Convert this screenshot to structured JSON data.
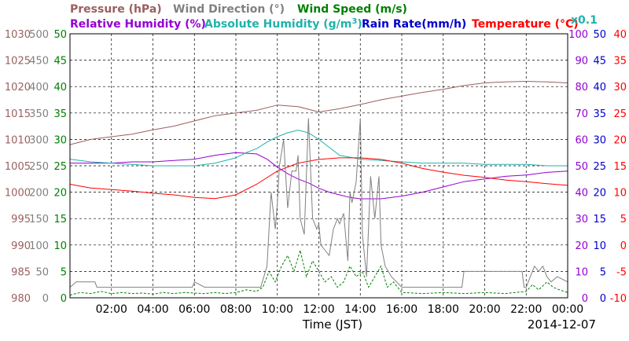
{
  "chart_data": {
    "type": "line",
    "legend": [
      {
        "id": "pressure",
        "label": "Pressure (hPa)",
        "color": "#9b5f5f"
      },
      {
        "id": "wind_dir",
        "label": "Wind Direction (°)",
        "color": "#808080"
      },
      {
        "id": "wind_speed",
        "label": "Wind Speed (m/s)",
        "color": "#008000"
      },
      {
        "id": "rel_hum",
        "label": "Relative Humidity (%)",
        "color": "#9400d3"
      },
      {
        "id": "abs_hum",
        "label": "Absolute Humidity (g/m",
        "superscript": "3",
        "suffix": ")",
        "color": "#20b2aa"
      },
      {
        "id": "rain_rate",
        "label": "Rain Rate(mm/h)",
        "color": "#0000cd"
      },
      {
        "id": "temperature",
        "label": "Temperature (°C)",
        "color": "#ff0000"
      },
      {
        "id": "abs_hum_scale",
        "label": "x0.1",
        "color": "#20b2aa"
      }
    ],
    "xlabel": "Time (JST)",
    "date_label": "2014-12-07",
    "x_range_hours": [
      0,
      24
    ],
    "x_ticks": [
      "02:00",
      "04:00",
      "06:00",
      "08:00",
      "10:00",
      "12:00",
      "14:00",
      "16:00",
      "18:00",
      "20:00",
      "22:00",
      "00:00"
    ],
    "axes": {
      "pressure": {
        "min": 980,
        "max": 1030,
        "ticks": [
          "1030",
          "1025",
          "1020",
          "1015",
          "1010",
          "1005",
          "1000",
          "995",
          "990",
          "985",
          "980"
        ],
        "color": "#9b5f5f"
      },
      "wind_dir": {
        "min": 0,
        "max": 500,
        "ticks": [
          "500",
          "450",
          "400",
          "350",
          "300",
          "250",
          "200",
          "150",
          "100",
          "50",
          "0"
        ],
        "color": "#808080"
      },
      "wind_speed": {
        "min": 0,
        "max": 50,
        "ticks": [
          "50",
          "45",
          "40",
          "35",
          "30",
          "25",
          "20",
          "15",
          "10",
          "5",
          "0"
        ],
        "color": "#008000"
      },
      "rel_hum": {
        "min": 0,
        "max": 100,
        "ticks": [
          "100",
          "90",
          "80",
          "70",
          "60",
          "50",
          "40",
          "30",
          "20",
          "10",
          "0"
        ],
        "color": "#9400d3"
      },
      "rain_rate": {
        "min": 0,
        "max": 50,
        "ticks": [
          "50",
          "45",
          "40",
          "35",
          "30",
          "25",
          "20",
          "15",
          "10",
          "5",
          "0"
        ],
        "color": "#0000cd"
      },
      "temperature": {
        "min": -10,
        "max": 40,
        "ticks": [
          "40",
          "35",
          "30",
          "25",
          "20",
          "15",
          "10",
          "5",
          "0",
          "-5",
          "-10"
        ],
        "color": "#ff0000"
      }
    },
    "series": [
      {
        "name": "Pressure (hPa)",
        "axis": "pressure",
        "color": "#9b5f5f",
        "x": [
          0,
          1,
          2,
          3,
          4,
          5,
          6,
          7,
          8,
          9,
          10,
          11,
          12,
          13,
          14,
          15,
          16,
          17,
          18,
          19,
          20,
          21,
          22,
          23,
          24
        ],
        "y": [
          1009,
          1010,
          1010.5,
          1011,
          1011.8,
          1012.5,
          1013.5,
          1014.5,
          1015,
          1015.5,
          1016.5,
          1016.2,
          1015.2,
          1015.8,
          1016.6,
          1017.5,
          1018.2,
          1018.9,
          1019.5,
          1020.2,
          1020.7,
          1020.9,
          1021,
          1020.9,
          1020.7
        ]
      },
      {
        "name": "Relative Humidity (%)",
        "axis": "rel_hum",
        "color": "#9400d3",
        "x": [
          0,
          1,
          2,
          3,
          4,
          5,
          6,
          7,
          8,
          9,
          9.5,
          10,
          10.5,
          11,
          11.5,
          12,
          12.5,
          13,
          13.5,
          14,
          15,
          16,
          17,
          18,
          19,
          20,
          21,
          22,
          23,
          24
        ],
        "y": [
          51,
          51,
          51,
          51.5,
          51.5,
          52,
          52.5,
          54,
          55,
          54.5,
          52.5,
          49.5,
          47,
          45,
          43.5,
          41.5,
          40,
          39,
          38,
          37.5,
          37.5,
          38.5,
          40,
          42,
          44,
          45,
          46,
          46.5,
          47.5,
          48
        ]
      },
      {
        "name": "Absolute Humidity x0.1 (g/m3)",
        "axis": "rel_hum",
        "color": "#20b2aa",
        "x": [
          0,
          1,
          2,
          3,
          4,
          5,
          6,
          7,
          8,
          8.5,
          9,
          9.5,
          10,
          10.5,
          11,
          11.5,
          12,
          12.5,
          13,
          14,
          15,
          16,
          17,
          18,
          19,
          20,
          21,
          22,
          23,
          24
        ],
        "y": [
          52.5,
          51.5,
          51,
          50.5,
          50,
          50,
          50,
          51,
          53,
          55,
          56.5,
          59,
          61,
          62.5,
          63.5,
          62.5,
          60,
          57,
          54,
          52.5,
          52,
          51.5,
          51,
          51,
          51,
          50.5,
          50.5,
          50.5,
          50,
          50
        ]
      },
      {
        "name": "Temperature (°C)",
        "axis": "temperature",
        "color": "#ff0000",
        "x": [
          0,
          1,
          2,
          3,
          4,
          5,
          6,
          7,
          8,
          9,
          10,
          11,
          12,
          13,
          14,
          15,
          16,
          17,
          18,
          19,
          20,
          21,
          22,
          23,
          24
        ],
        "y": [
          11.5,
          10.8,
          10.5,
          10.2,
          9.8,
          9.5,
          9,
          8.8,
          9.5,
          11.5,
          14,
          15.5,
          16.2,
          16.5,
          16.5,
          16.2,
          15.5,
          14.5,
          13.8,
          13.2,
          12.8,
          12.3,
          12,
          11.6,
          11.3
        ]
      },
      {
        "name": "Wind Direction (°)",
        "axis": "wind_dir",
        "color": "#808080",
        "x": [
          0,
          0.3,
          0.5,
          1.2,
          1.3,
          1.4,
          2,
          4,
          5.9,
          6,
          6.5,
          7.8,
          8,
          9.2,
          9.5,
          9.7,
          9.9,
          10,
          10.1,
          10.3,
          10.5,
          10.7,
          10.9,
          11,
          11.1,
          11.3,
          11.5,
          11.7,
          11.9,
          12,
          12.1,
          12.3,
          12.5,
          12.7,
          12.9,
          13,
          13.2,
          13.4,
          13.5,
          13.6,
          13.8,
          14,
          14.1,
          14.3,
          14.5,
          14.7,
          14.9,
          15,
          15.2,
          15.5,
          16,
          17,
          18,
          18.9,
          19,
          20,
          21,
          21.8,
          21.9,
          22,
          22.2,
          22.4,
          22.6,
          22.8,
          23,
          23.2,
          23.5,
          24
        ],
        "y": [
          20,
          30,
          30,
          30,
          20,
          20,
          20,
          20,
          20,
          30,
          20,
          20,
          20,
          20,
          60,
          200,
          130,
          180,
          250,
          300,
          170,
          240,
          240,
          270,
          150,
          120,
          340,
          150,
          130,
          140,
          100,
          90,
          80,
          130,
          150,
          140,
          160,
          70,
          200,
          180,
          220,
          340,
          120,
          40,
          230,
          150,
          230,
          100,
          60,
          40,
          20,
          20,
          20,
          20,
          50,
          50,
          50,
          50,
          20,
          20,
          40,
          60,
          50,
          60,
          40,
          30,
          40,
          30
        ]
      },
      {
        "name": "Wind Speed (m/s)",
        "axis": "wind_speed",
        "color": "#008000",
        "x": [
          0,
          0.5,
          1,
          1.5,
          2,
          2.5,
          3,
          3.5,
          4,
          4.5,
          5,
          5.5,
          6,
          6.5,
          7,
          7.5,
          8,
          8.5,
          9,
          9.3,
          9.6,
          9.9,
          10.2,
          10.5,
          10.8,
          11.1,
          11.4,
          11.7,
          12,
          12.3,
          12.6,
          12.9,
          13.2,
          13.5,
          13.8,
          14.1,
          14.4,
          14.7,
          15,
          15.3,
          15.6,
          16,
          17,
          18,
          19,
          20,
          21,
          22,
          22.3,
          22.6,
          23,
          23.3,
          23.6,
          24
        ],
        "y": [
          0.5,
          1,
          0.8,
          1.2,
          0.8,
          1,
          0.8,
          0.9,
          0.7,
          1,
          0.8,
          1,
          0.9,
          0.8,
          1,
          0.8,
          1,
          1.5,
          1.2,
          2,
          5,
          3,
          6,
          8,
          5,
          9,
          4,
          7,
          5,
          3,
          4,
          2,
          3,
          6,
          4,
          5,
          2,
          4,
          6,
          2,
          3,
          1,
          0.8,
          1,
          0.8,
          1,
          0.8,
          1.2,
          2.5,
          1.5,
          3,
          2,
          1.5,
          1
        ]
      },
      {
        "name": "Rain Rate(mm/h)",
        "axis": "rain_rate",
        "color": "#0000cd",
        "x": [
          0,
          24
        ],
        "y": [
          0,
          0
        ]
      }
    ]
  }
}
